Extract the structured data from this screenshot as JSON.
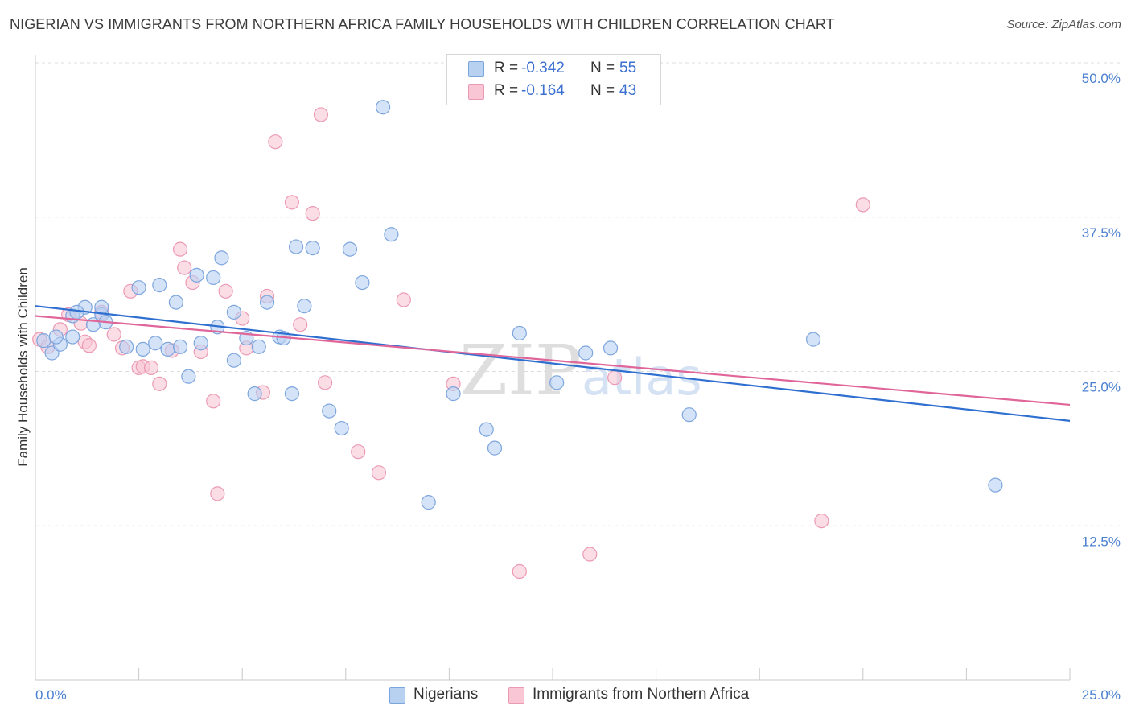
{
  "title": "NIGERIAN VS IMMIGRANTS FROM NORTHERN AFRICA FAMILY HOUSEHOLDS WITH CHILDREN CORRELATION CHART",
  "source": "Source: ZipAtlas.com",
  "colors": {
    "blue_fill": "#b8d1f1",
    "blue_stroke": "#7ea6de",
    "blue_line": "#2f6fd0",
    "pink_fill": "#f9c6d6",
    "pink_stroke": "#ec9ab4",
    "pink_line": "#e0669a",
    "grid": "#dcdcdc",
    "tick_text": "#4a7fd0"
  },
  "legend_top": {
    "rows": [
      {
        "r_label": "R =",
        "r_value": "-0.342",
        "n_label": "N =",
        "n_value": "55"
      },
      {
        "r_label": "R =",
        "r_value": "-0.164",
        "n_label": "N =",
        "n_value": "43"
      }
    ]
  },
  "legend_bottom": [
    "Nigerians",
    "Immigrants from Northern Africa"
  ],
  "watermark": "ZIPatlas",
  "chart_data": {
    "type": "scatter",
    "ylabel": "Family Households with Children",
    "xlim": [
      0,
      25
    ],
    "ylim": [
      0,
      50
    ],
    "x_tick_labels": [
      {
        "value": 0,
        "label": "0.0%"
      },
      {
        "value": 25,
        "label": "25.0%"
      }
    ],
    "y_tick_labels": [
      {
        "value": 12.5,
        "label": "12.5%"
      },
      {
        "value": 25.0,
        "label": "25.0%"
      },
      {
        "value": 37.5,
        "label": "37.5%"
      },
      {
        "value": 50.0,
        "label": "50.0%"
      }
    ],
    "grid": "horizontal dashed",
    "series": [
      {
        "name": "Nigerians",
        "color": "blue",
        "points": [
          [
            0.2,
            27.5
          ],
          [
            0.4,
            26.5
          ],
          [
            0.6,
            27.2
          ],
          [
            0.9,
            29.5
          ],
          [
            1.2,
            30.2
          ],
          [
            1.4,
            28.8
          ],
          [
            1.6,
            29.6
          ],
          [
            1.7,
            29.0
          ],
          [
            2.5,
            31.8
          ],
          [
            2.6,
            26.8
          ],
          [
            2.9,
            27.3
          ],
          [
            1.6,
            30.2
          ],
          [
            0.9,
            27.8
          ],
          [
            3.2,
            26.8
          ],
          [
            3.4,
            30.6
          ],
          [
            3.5,
            27.0
          ],
          [
            3.7,
            24.6
          ],
          [
            3.9,
            32.8
          ],
          [
            4.0,
            27.3
          ],
          [
            4.3,
            32.6
          ],
          [
            4.4,
            28.6
          ],
          [
            4.5,
            34.2
          ],
          [
            4.8,
            29.8
          ],
          [
            4.8,
            25.9
          ],
          [
            5.1,
            27.7
          ],
          [
            5.3,
            23.2
          ],
          [
            5.4,
            27.0
          ],
          [
            5.6,
            30.6
          ],
          [
            5.9,
            27.8
          ],
          [
            6.0,
            27.7
          ],
          [
            6.2,
            23.2
          ],
          [
            6.3,
            35.1
          ],
          [
            6.5,
            30.3
          ],
          [
            6.7,
            35.0
          ],
          [
            7.1,
            21.8
          ],
          [
            7.4,
            20.4
          ],
          [
            7.6,
            34.9
          ],
          [
            7.9,
            32.2
          ],
          [
            8.4,
            46.4
          ],
          [
            8.6,
            36.1
          ],
          [
            9.5,
            14.4
          ],
          [
            10.1,
            23.2
          ],
          [
            10.9,
            20.3
          ],
          [
            11.1,
            18.8
          ],
          [
            11.7,
            28.1
          ],
          [
            12.6,
            24.1
          ],
          [
            13.3,
            26.5
          ],
          [
            13.9,
            26.9
          ],
          [
            15.8,
            21.5
          ],
          [
            18.8,
            27.6
          ],
          [
            23.2,
            15.8
          ],
          [
            2.2,
            27.0
          ],
          [
            1.0,
            29.8
          ],
          [
            0.5,
            27.8
          ],
          [
            3.0,
            32.0
          ]
        ]
      },
      {
        "name": "Immigrants from Northern Africa",
        "color": "pink",
        "points": [
          [
            0.1,
            27.6
          ],
          [
            0.3,
            27.0
          ],
          [
            0.6,
            28.4
          ],
          [
            0.8,
            29.6
          ],
          [
            1.1,
            28.9
          ],
          [
            1.2,
            27.4
          ],
          [
            1.3,
            27.1
          ],
          [
            1.6,
            29.8
          ],
          [
            1.9,
            28.0
          ],
          [
            2.1,
            26.9
          ],
          [
            2.3,
            31.5
          ],
          [
            2.5,
            25.3
          ],
          [
            2.6,
            25.4
          ],
          [
            2.8,
            25.3
          ],
          [
            3.0,
            24.0
          ],
          [
            3.3,
            26.7
          ],
          [
            3.5,
            34.9
          ],
          [
            3.6,
            33.4
          ],
          [
            3.8,
            32.2
          ],
          [
            4.0,
            26.6
          ],
          [
            4.3,
            22.6
          ],
          [
            4.4,
            15.1
          ],
          [
            4.6,
            31.5
          ],
          [
            5.0,
            29.3
          ],
          [
            5.1,
            26.9
          ],
          [
            5.5,
            23.3
          ],
          [
            5.6,
            31.1
          ],
          [
            5.8,
            43.6
          ],
          [
            6.2,
            38.7
          ],
          [
            6.4,
            28.8
          ],
          [
            6.7,
            37.8
          ],
          [
            6.9,
            45.8
          ],
          [
            7.0,
            24.1
          ],
          [
            7.8,
            18.5
          ],
          [
            8.3,
            16.8
          ],
          [
            8.9,
            30.8
          ],
          [
            10.1,
            24.0
          ],
          [
            10.5,
            49.3
          ],
          [
            11.7,
            8.8
          ],
          [
            13.4,
            10.2
          ],
          [
            14.0,
            24.5
          ],
          [
            19.0,
            12.9
          ],
          [
            20.0,
            38.5
          ]
        ]
      }
    ],
    "trend_lines": [
      {
        "series": "Nigerians",
        "x": [
          0,
          25
        ],
        "y": [
          30.3,
          21.0
        ]
      },
      {
        "series": "Immigrants from Northern Africa",
        "x": [
          0,
          25
        ],
        "y": [
          29.5,
          22.3
        ]
      }
    ]
  }
}
